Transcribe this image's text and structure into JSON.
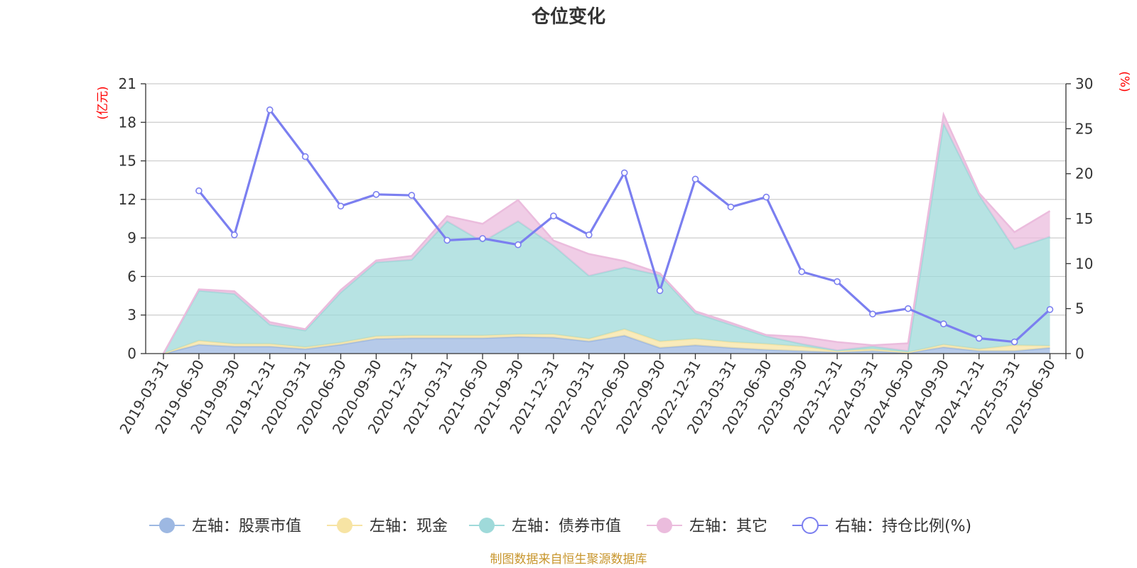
{
  "chart_data": {
    "type": "area",
    "title": "仓位变化",
    "left_axis_unit": "(亿元)",
    "right_axis_unit": "(%)",
    "categories": [
      "2019-03-31",
      "2019-06-30",
      "2019-09-30",
      "2019-12-31",
      "2020-03-31",
      "2020-06-30",
      "2020-09-30",
      "2020-12-31",
      "2021-03-31",
      "2021-06-30",
      "2021-09-30",
      "2021-12-31",
      "2022-03-31",
      "2022-06-30",
      "2022-09-30",
      "2022-12-31",
      "2023-03-31",
      "2023-06-30",
      "2023-09-30",
      "2023-12-31",
      "2024-03-31",
      "2024-06-30",
      "2024-09-30",
      "2024-12-31",
      "2025-03-31",
      "2025-06-30"
    ],
    "y_left": {
      "min": 0,
      "max": 21,
      "ticks": [
        0,
        3,
        6,
        9,
        12,
        15,
        18,
        21
      ]
    },
    "y_right": {
      "min": 0,
      "max": 30,
      "ticks": [
        0,
        5,
        10,
        15,
        20,
        25,
        30
      ]
    },
    "series": [
      {
        "name": "左轴：股票市值",
        "axis": "left",
        "stack": true,
        "color": "#9db8e2",
        "values": [
          0,
          0.7,
          0.55,
          0.55,
          0.35,
          0.7,
          1.15,
          1.2,
          1.2,
          1.2,
          1.3,
          1.25,
          0.95,
          1.4,
          0.45,
          0.65,
          0.45,
          0.3,
          0.2,
          0.1,
          0.2,
          0.05,
          0.5,
          0.2,
          0.2,
          0.45
        ]
      },
      {
        "name": "左轴：现金",
        "axis": "left",
        "stack": true,
        "color": "#f7e4a4",
        "values": [
          0,
          0.3,
          0.2,
          0.2,
          0.15,
          0.15,
          0.2,
          0.2,
          0.2,
          0.2,
          0.2,
          0.25,
          0.2,
          0.5,
          0.5,
          0.5,
          0.45,
          0.45,
          0.35,
          0.1,
          0.15,
          0.05,
          0.2,
          0.15,
          0.45,
          0.15
        ]
      },
      {
        "name": "左轴：债券市值",
        "axis": "left",
        "stack": true,
        "color": "#9fdada",
        "values": [
          0,
          3.9,
          3.9,
          1.5,
          1.3,
          3.9,
          5.75,
          5.9,
          8.9,
          7.3,
          8.8,
          6.9,
          4.9,
          4.8,
          5.15,
          2.0,
          1.35,
          0.6,
          0.2,
          0.05,
          0.2,
          0.1,
          17.2,
          12.0,
          7.5,
          8.5
        ]
      },
      {
        "name": "左轴：其它",
        "axis": "left",
        "stack": true,
        "color": "#ebbcdd",
        "values": [
          0,
          0.1,
          0.2,
          0.2,
          0.1,
          0.2,
          0.15,
          0.3,
          0.4,
          1.4,
          1.65,
          0.4,
          1.7,
          0.5,
          0.15,
          0.15,
          0.15,
          0.1,
          0.55,
          0.65,
          0.1,
          0.6,
          0.7,
          0.15,
          1.3,
          2.0
        ]
      },
      {
        "name": "右轴：持仓比例(%)",
        "axis": "right",
        "type": "line",
        "color": "#7b7ff0",
        "values": [
          null,
          18.1,
          13.2,
          27.1,
          21.9,
          16.4,
          17.7,
          17.6,
          12.6,
          12.8,
          12.1,
          15.3,
          13.2,
          20.1,
          7.0,
          19.4,
          16.3,
          17.4,
          9.1,
          8.0,
          4.4,
          5.0,
          3.3,
          1.7,
          1.3,
          4.9
        ]
      }
    ],
    "legend_position": "bottom",
    "grid": true
  },
  "footer": {
    "source": "制图数据来自恒生聚源数据库"
  }
}
